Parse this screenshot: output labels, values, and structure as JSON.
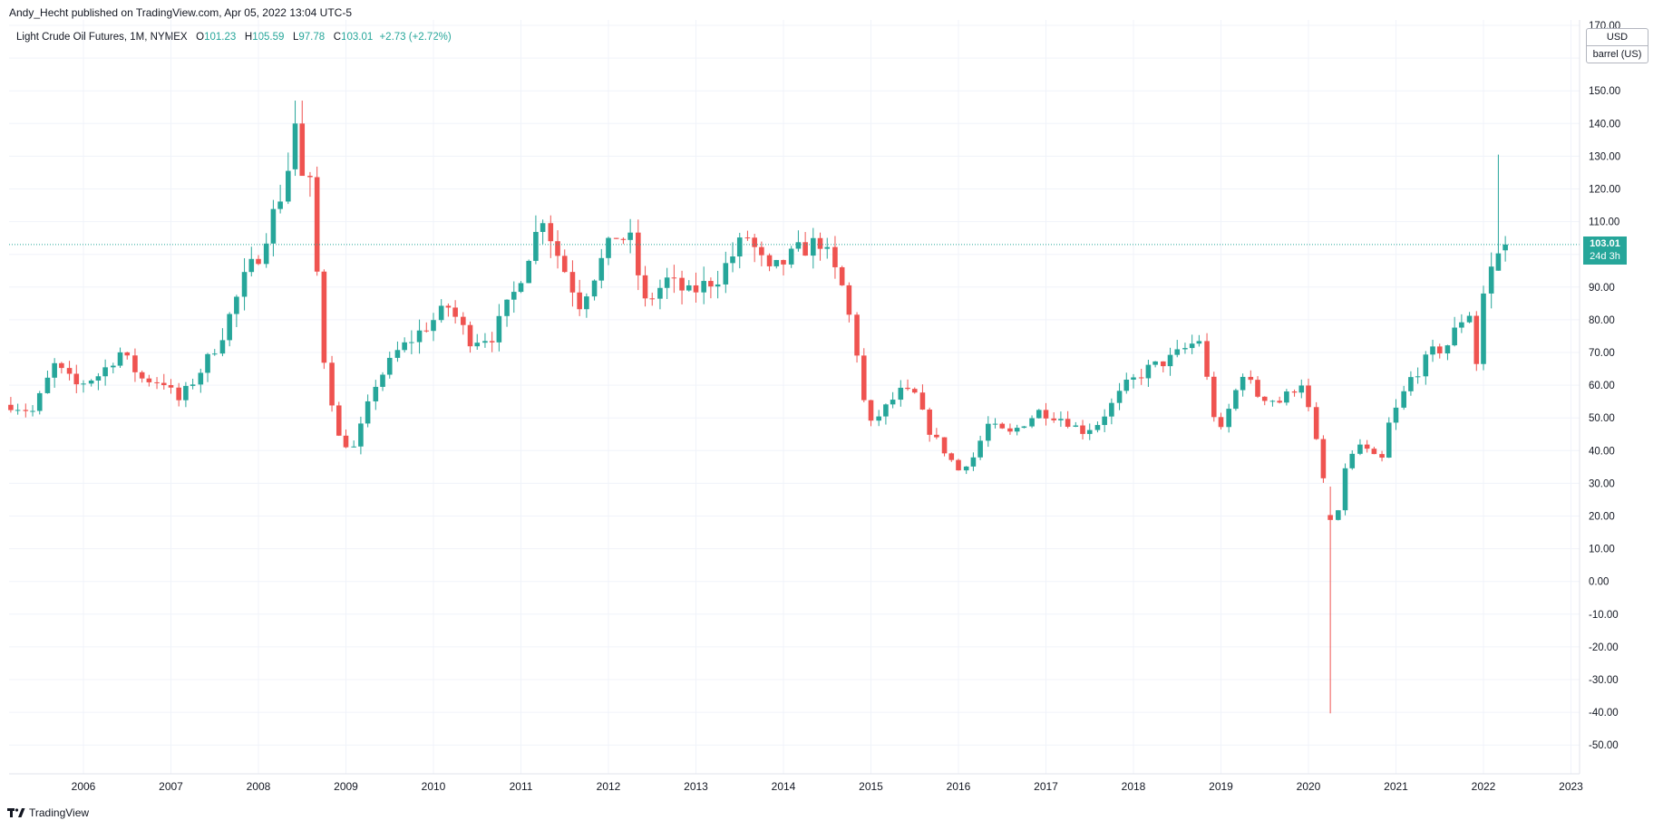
{
  "header": {
    "published_by": "Andy_Hecht published on TradingView.com, Apr 05, 2022 13:04 UTC-5"
  },
  "legend": {
    "symbol": "Light Crude Oil Futures, 1M, NYMEX",
    "open_label": "O",
    "open": "101.23",
    "high_label": "H",
    "high": "105.59",
    "low_label": "L",
    "low": "97.78",
    "close_label": "C",
    "close": "103.01",
    "change": "+2.73 (+2.72%)"
  },
  "units": {
    "currency": "USD",
    "unit": "barrel (US)"
  },
  "last_price": {
    "value": "103.01",
    "countdown": "24d 3h"
  },
  "footer": {
    "brand": "TradingView"
  },
  "colors": {
    "up": "#26a69a",
    "down": "#ef5350",
    "grid": "#f0f3fa",
    "axis": "#e0e3eb",
    "text": "#131722"
  },
  "chart_data": {
    "type": "candlestick",
    "interval": "1M",
    "ylim": [
      -57,
      172
    ],
    "yticks": [
      "170.00",
      "160.00",
      "150.00",
      "140.00",
      "130.00",
      "120.00",
      "110.00",
      "100.00",
      "90.00",
      "80.00",
      "70.00",
      "60.00",
      "50.00",
      "40.00",
      "30.00",
      "20.00",
      "10.00",
      "0.00",
      "-10.00",
      "-20.00",
      "-30.00",
      "-40.00",
      "-50.00"
    ],
    "ytick_values": [
      170,
      160,
      150,
      140,
      130,
      120,
      110,
      100,
      90,
      80,
      70,
      60,
      50,
      40,
      30,
      20,
      10,
      0,
      -10,
      -20,
      -30,
      -40,
      -50
    ],
    "xticks": [
      "2006",
      "2007",
      "2008",
      "2009",
      "2010",
      "2011",
      "2012",
      "2013",
      "2014",
      "2015",
      "2016",
      "2017",
      "2018",
      "2019",
      "2020",
      "2021",
      "2022",
      "2023"
    ],
    "xtick_values": [
      2006,
      2007,
      2008,
      2009,
      2010,
      2011,
      2012,
      2013,
      2014,
      2015,
      2016,
      2017,
      2018,
      2019,
      2020,
      2021,
      2022,
      2023
    ],
    "xlim": [
      2005.14,
      2023.3
    ],
    "last_close": 103.01,
    "anchors": [
      [
        2005.17,
        54
      ],
      [
        2005.42,
        52
      ],
      [
        2005.67,
        66
      ],
      [
        2005.92,
        60
      ],
      [
        2006.17,
        63
      ],
      [
        2006.42,
        70
      ],
      [
        2006.67,
        62
      ],
      [
        2006.92,
        61
      ],
      [
        2007.08,
        55
      ],
      [
        2007.33,
        64
      ],
      [
        2007.58,
        75
      ],
      [
        2007.83,
        92
      ],
      [
        2008.0,
        100
      ],
      [
        2008.25,
        118
      ],
      [
        2008.42,
        134
      ],
      [
        2008.5,
        140
      ],
      [
        2008.58,
        124
      ],
      [
        2008.75,
        68
      ],
      [
        2008.92,
        44
      ],
      [
        2009.08,
        40
      ],
      [
        2009.33,
        60
      ],
      [
        2009.58,
        70
      ],
      [
        2009.92,
        78
      ],
      [
        2010.17,
        84
      ],
      [
        2010.42,
        74
      ],
      [
        2010.67,
        75
      ],
      [
        2010.92,
        88
      ],
      [
        2011.25,
        112
      ],
      [
        2011.42,
        100
      ],
      [
        2011.67,
        85
      ],
      [
        2011.92,
        98
      ],
      [
        2012.08,
        106
      ],
      [
        2012.25,
        104
      ],
      [
        2012.42,
        85
      ],
      [
        2012.67,
        92
      ],
      [
        2012.92,
        88
      ],
      [
        2013.25,
        93
      ],
      [
        2013.58,
        106
      ],
      [
        2013.83,
        94
      ],
      [
        2014.17,
        101
      ],
      [
        2014.42,
        104
      ],
      [
        2014.67,
        90
      ],
      [
        2014.83,
        72
      ],
      [
        2014.92,
        55
      ],
      [
        2015.0,
        48
      ],
      [
        2015.33,
        58
      ],
      [
        2015.5,
        57
      ],
      [
        2015.67,
        46
      ],
      [
        2015.92,
        37
      ],
      [
        2016.0,
        34
      ],
      [
        2016.17,
        38
      ],
      [
        2016.33,
        48
      ],
      [
        2016.58,
        45
      ],
      [
        2016.92,
        52
      ],
      [
        2017.17,
        50
      ],
      [
        2017.42,
        46
      ],
      [
        2017.58,
        48
      ],
      [
        2017.92,
        60
      ],
      [
        2018.17,
        65
      ],
      [
        2018.42,
        68
      ],
      [
        2018.75,
        74
      ],
      [
        2018.92,
        51
      ],
      [
        2019.0,
        46
      ],
      [
        2019.25,
        64
      ],
      [
        2019.42,
        57
      ],
      [
        2019.67,
        55
      ],
      [
        2019.92,
        61
      ],
      [
        2020.08,
        44
      ],
      [
        2020.25,
        20
      ],
      [
        2020.33,
        19
      ],
      [
        2020.42,
        35
      ],
      [
        2020.58,
        42
      ],
      [
        2020.83,
        36
      ],
      [
        2020.92,
        48
      ],
      [
        2021.17,
        62
      ],
      [
        2021.42,
        70
      ],
      [
        2021.58,
        72
      ],
      [
        2021.83,
        84
      ],
      [
        2021.92,
        67
      ],
      [
        2022.0,
        88
      ],
      [
        2022.08,
        95
      ],
      [
        2022.17,
        100
      ],
      [
        2022.25,
        103.01
      ]
    ],
    "overrides": {
      "2008.42": [
        126,
        147,
        124,
        140
      ],
      "2008.5": [
        140,
        147,
        135,
        124
      ],
      "2020.25": [
        20.3,
        29,
        -40.32,
        18.8
      ],
      "2022.17": [
        95,
        130.5,
        95,
        100.3
      ],
      "2022.25": [
        101.23,
        105.59,
        97.78,
        103.01
      ]
    }
  }
}
